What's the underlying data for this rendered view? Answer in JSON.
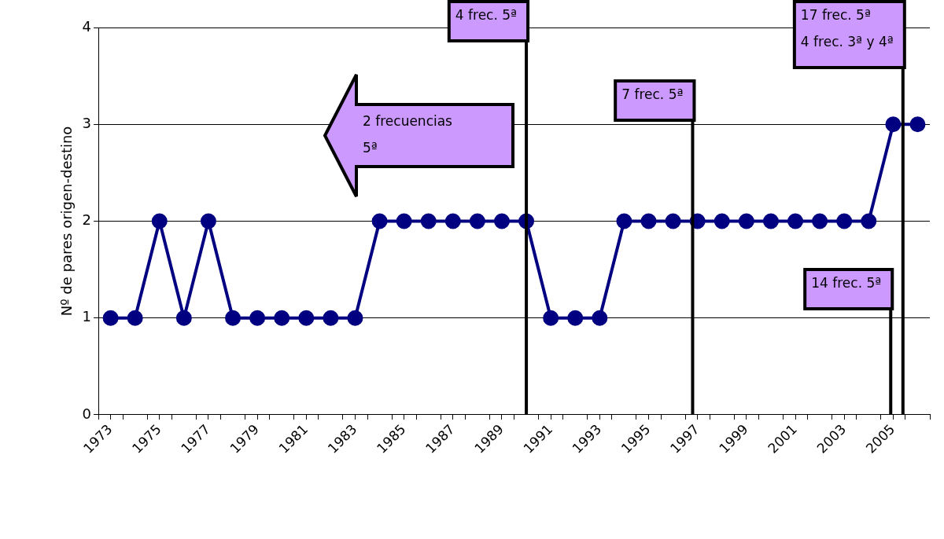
{
  "chart_data": {
    "type": "line",
    "ylabel": "Nº de pares origen-destino",
    "x": [
      1973,
      1974,
      1975,
      1976,
      1977,
      1978,
      1979,
      1980,
      1981,
      1982,
      1983,
      1984,
      1985,
      1986,
      1987,
      1988,
      1989,
      1990,
      1991,
      1992,
      1993,
      1994,
      1995,
      1996,
      1997,
      1998,
      1999,
      2000,
      2001,
      2002,
      2003,
      2004,
      2005,
      2006
    ],
    "series": [
      {
        "color": "#000080",
        "values": [
          1,
          1,
          2,
          1,
          2,
          1,
          1,
          1,
          1,
          1,
          1,
          2,
          2,
          2,
          2,
          2,
          2,
          2,
          1,
          1,
          1,
          2,
          2,
          2,
          2,
          2,
          2,
          2,
          2,
          2,
          2,
          2,
          3,
          3
        ]
      }
    ],
    "xlim": [
      1972.5,
      2006.5
    ],
    "xticks": [
      {
        "value": 1972.5,
        "label": null
      },
      1973,
      {
        "value": 1973.5,
        "label": null
      },
      {
        "value": 1974.5,
        "label": null
      },
      1975,
      {
        "value": 1975.5,
        "label": null
      },
      {
        "value": 1976.5,
        "label": null
      },
      1977,
      {
        "value": 1977.5,
        "label": null
      },
      {
        "value": 1978.5,
        "label": null
      },
      1979,
      {
        "value": 1979.5,
        "label": null
      },
      {
        "value": 1980.5,
        "label": null
      },
      1981,
      {
        "value": 1981.5,
        "label": null
      },
      {
        "value": 1982.5,
        "label": null
      },
      1983,
      {
        "value": 1983.5,
        "label": null
      },
      {
        "value": 1984.5,
        "label": null
      },
      1985,
      {
        "value": 1985.5,
        "label": null
      },
      {
        "value": 1986.5,
        "label": null
      },
      1987,
      {
        "value": 1987.5,
        "label": null
      },
      {
        "value": 1988.5,
        "label": null
      },
      1989,
      {
        "value": 1989.5,
        "label": null
      },
      {
        "value": 1990.5,
        "label": null
      },
      1991,
      {
        "value": 1991.5,
        "label": null
      },
      {
        "value": 1992.5,
        "label": null
      },
      1993,
      {
        "value": 1993.5,
        "label": null
      },
      {
        "value": 1994.5,
        "label": null
      },
      1995,
      {
        "value": 1995.5,
        "label": null
      },
      {
        "value": 1996.5,
        "label": null
      },
      1997,
      {
        "value": 1997.5,
        "label": null
      },
      {
        "value": 1998.5,
        "label": null
      },
      1999,
      {
        "value": 1999.5,
        "label": null
      },
      {
        "value": 2000.5,
        "label": null
      },
      2001,
      {
        "value": 2001.5,
        "label": null
      },
      {
        "value": 2002.5,
        "label": null
      },
      2003,
      {
        "value": 2003.5,
        "label": null
      },
      {
        "value": 2004.5,
        "label": null
      },
      2005,
      {
        "value": 2005.5,
        "label": null
      },
      {
        "value": 2006.5,
        "label": null
      }
    ],
    "ylim": [
      0,
      4
    ],
    "yticks": [
      0,
      1,
      2,
      3,
      4
    ],
    "grid": "y",
    "legend": false,
    "marker": "circle",
    "line_style": "solid",
    "ref_lines": [
      {
        "axis": "x",
        "value": 1990,
        "label": "4 frec. 5ª",
        "color": "#000000"
      },
      {
        "axis": "x",
        "value": 1996.8,
        "label": "7 frec. 5ª",
        "color": "#000000"
      },
      {
        "axis": "x",
        "value": 2004.9,
        "label": "14 frec. 5ª",
        "color": "#000000"
      },
      {
        "axis": "x",
        "value": 2005.4,
        "label": "17 frec. 5ª\n4 frec. 3ª y 4ª",
        "color": "#000000"
      }
    ],
    "annotations": [
      "2 frecuencias\n5ª"
    ]
  }
}
